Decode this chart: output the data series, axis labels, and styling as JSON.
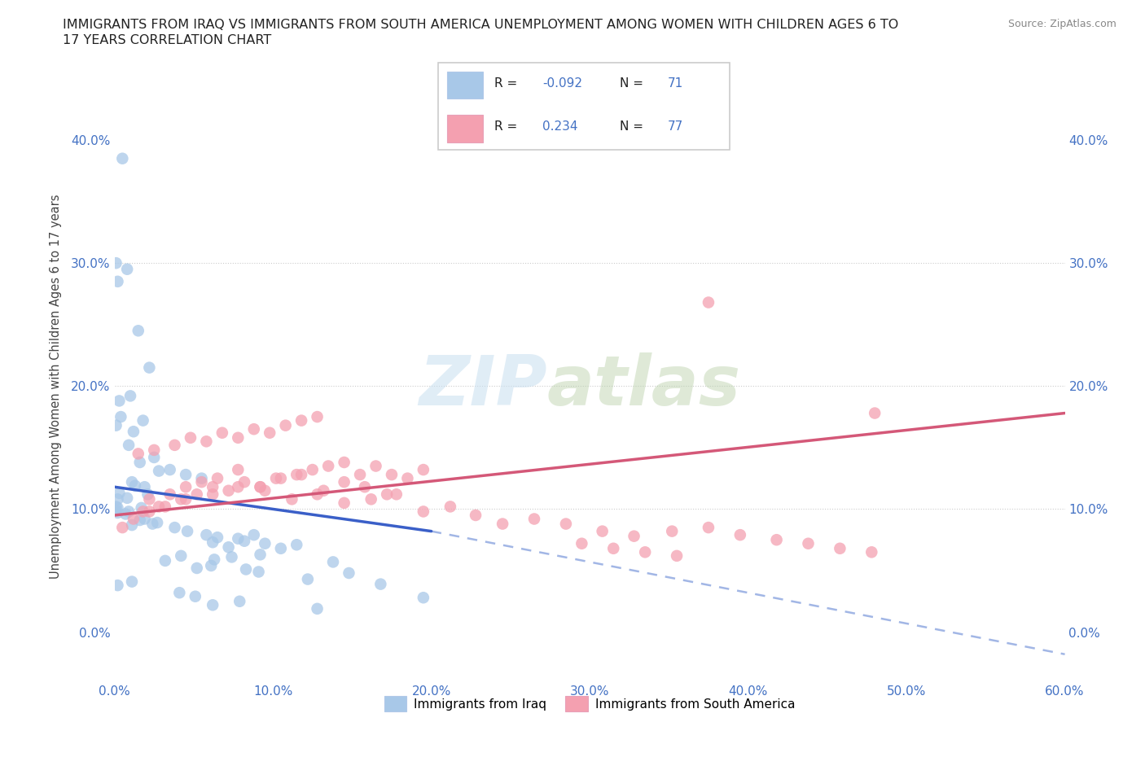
{
  "title_line1": "IMMIGRANTS FROM IRAQ VS IMMIGRANTS FROM SOUTH AMERICA UNEMPLOYMENT AMONG WOMEN WITH CHILDREN AGES 6 TO",
  "title_line2": "17 YEARS CORRELATION CHART",
  "source": "Source: ZipAtlas.com",
  "ylabel": "Unemployment Among Women with Children Ages 6 to 17 years",
  "xlim": [
    0.0,
    0.6
  ],
  "ylim": [
    -0.04,
    0.44
  ],
  "xticks": [
    0.0,
    0.1,
    0.2,
    0.3,
    0.4,
    0.5,
    0.6
  ],
  "yticks": [
    0.0,
    0.1,
    0.2,
    0.3,
    0.4
  ],
  "R_iraq": -0.092,
  "N_iraq": 71,
  "R_sa": 0.234,
  "N_sa": 77,
  "color_iraq": "#a8c8e8",
  "color_sa": "#f4a0b0",
  "line_color_iraq": "#3a5fc8",
  "line_color_sa": "#d45878",
  "line_color_iraq_dash": "#7090d8",
  "watermark_zip": "ZIP",
  "watermark_atlas": "atlas",
  "legend_labels": [
    "Immigrants from Iraq",
    "Immigrants from South America"
  ],
  "tick_color": "#4472c4",
  "iraq_x": [
    0.005,
    0.001,
    0.002,
    0.008,
    0.015,
    0.022,
    0.01,
    0.003,
    0.004,
    0.001,
    0.018,
    0.012,
    0.009,
    0.025,
    0.016,
    0.035,
    0.045,
    0.055,
    0.028,
    0.019,
    0.011,
    0.013,
    0.021,
    0.002,
    0.003,
    0.008,
    0.001,
    0.009,
    0.017,
    0.002,
    0.001,
    0.007,
    0.002,
    0.019,
    0.027,
    0.016,
    0.011,
    0.024,
    0.038,
    0.046,
    0.058,
    0.065,
    0.078,
    0.088,
    0.095,
    0.105,
    0.115,
    0.062,
    0.072,
    0.082,
    0.042,
    0.032,
    0.092,
    0.063,
    0.074,
    0.138,
    0.052,
    0.061,
    0.148,
    0.083,
    0.091,
    0.122,
    0.002,
    0.011,
    0.168,
    0.041,
    0.051,
    0.195,
    0.079,
    0.062,
    0.128
  ],
  "iraq_y": [
    0.385,
    0.3,
    0.285,
    0.295,
    0.245,
    0.215,
    0.192,
    0.188,
    0.175,
    0.168,
    0.172,
    0.163,
    0.152,
    0.142,
    0.138,
    0.132,
    0.128,
    0.125,
    0.131,
    0.118,
    0.122,
    0.119,
    0.112,
    0.108,
    0.113,
    0.109,
    0.102,
    0.098,
    0.101,
    0.097,
    0.099,
    0.096,
    0.101,
    0.092,
    0.089,
    0.091,
    0.087,
    0.088,
    0.085,
    0.082,
    0.079,
    0.077,
    0.076,
    0.079,
    0.072,
    0.068,
    0.071,
    0.073,
    0.069,
    0.074,
    0.062,
    0.058,
    0.063,
    0.059,
    0.061,
    0.057,
    0.052,
    0.054,
    0.048,
    0.051,
    0.049,
    0.043,
    0.038,
    0.041,
    0.039,
    0.032,
    0.029,
    0.028,
    0.025,
    0.022,
    0.019
  ],
  "sa_x": [
    0.005,
    0.012,
    0.022,
    0.032,
    0.042,
    0.052,
    0.062,
    0.072,
    0.082,
    0.092,
    0.102,
    0.115,
    0.125,
    0.135,
    0.145,
    0.155,
    0.165,
    0.175,
    0.185,
    0.195,
    0.015,
    0.025,
    0.038,
    0.048,
    0.058,
    0.068,
    0.078,
    0.088,
    0.098,
    0.108,
    0.118,
    0.128,
    0.022,
    0.035,
    0.045,
    0.055,
    0.065,
    0.078,
    0.092,
    0.105,
    0.118,
    0.132,
    0.145,
    0.158,
    0.172,
    0.018,
    0.028,
    0.045,
    0.062,
    0.078,
    0.095,
    0.112,
    0.128,
    0.145,
    0.162,
    0.178,
    0.195,
    0.212,
    0.228,
    0.245,
    0.265,
    0.285,
    0.308,
    0.328,
    0.352,
    0.375,
    0.395,
    0.418,
    0.438,
    0.458,
    0.478,
    0.295,
    0.315,
    0.335,
    0.355,
    0.375,
    0.48
  ],
  "sa_y": [
    0.085,
    0.092,
    0.098,
    0.102,
    0.108,
    0.112,
    0.118,
    0.115,
    0.122,
    0.118,
    0.125,
    0.128,
    0.132,
    0.135,
    0.138,
    0.128,
    0.135,
    0.128,
    0.125,
    0.132,
    0.145,
    0.148,
    0.152,
    0.158,
    0.155,
    0.162,
    0.158,
    0.165,
    0.162,
    0.168,
    0.172,
    0.175,
    0.108,
    0.112,
    0.118,
    0.122,
    0.125,
    0.132,
    0.118,
    0.125,
    0.128,
    0.115,
    0.122,
    0.118,
    0.112,
    0.098,
    0.102,
    0.108,
    0.112,
    0.118,
    0.115,
    0.108,
    0.112,
    0.105,
    0.108,
    0.112,
    0.098,
    0.102,
    0.095,
    0.088,
    0.092,
    0.088,
    0.082,
    0.078,
    0.082,
    0.085,
    0.079,
    0.075,
    0.072,
    0.068,
    0.065,
    0.072,
    0.068,
    0.065,
    0.062,
    0.268,
    0.178
  ]
}
